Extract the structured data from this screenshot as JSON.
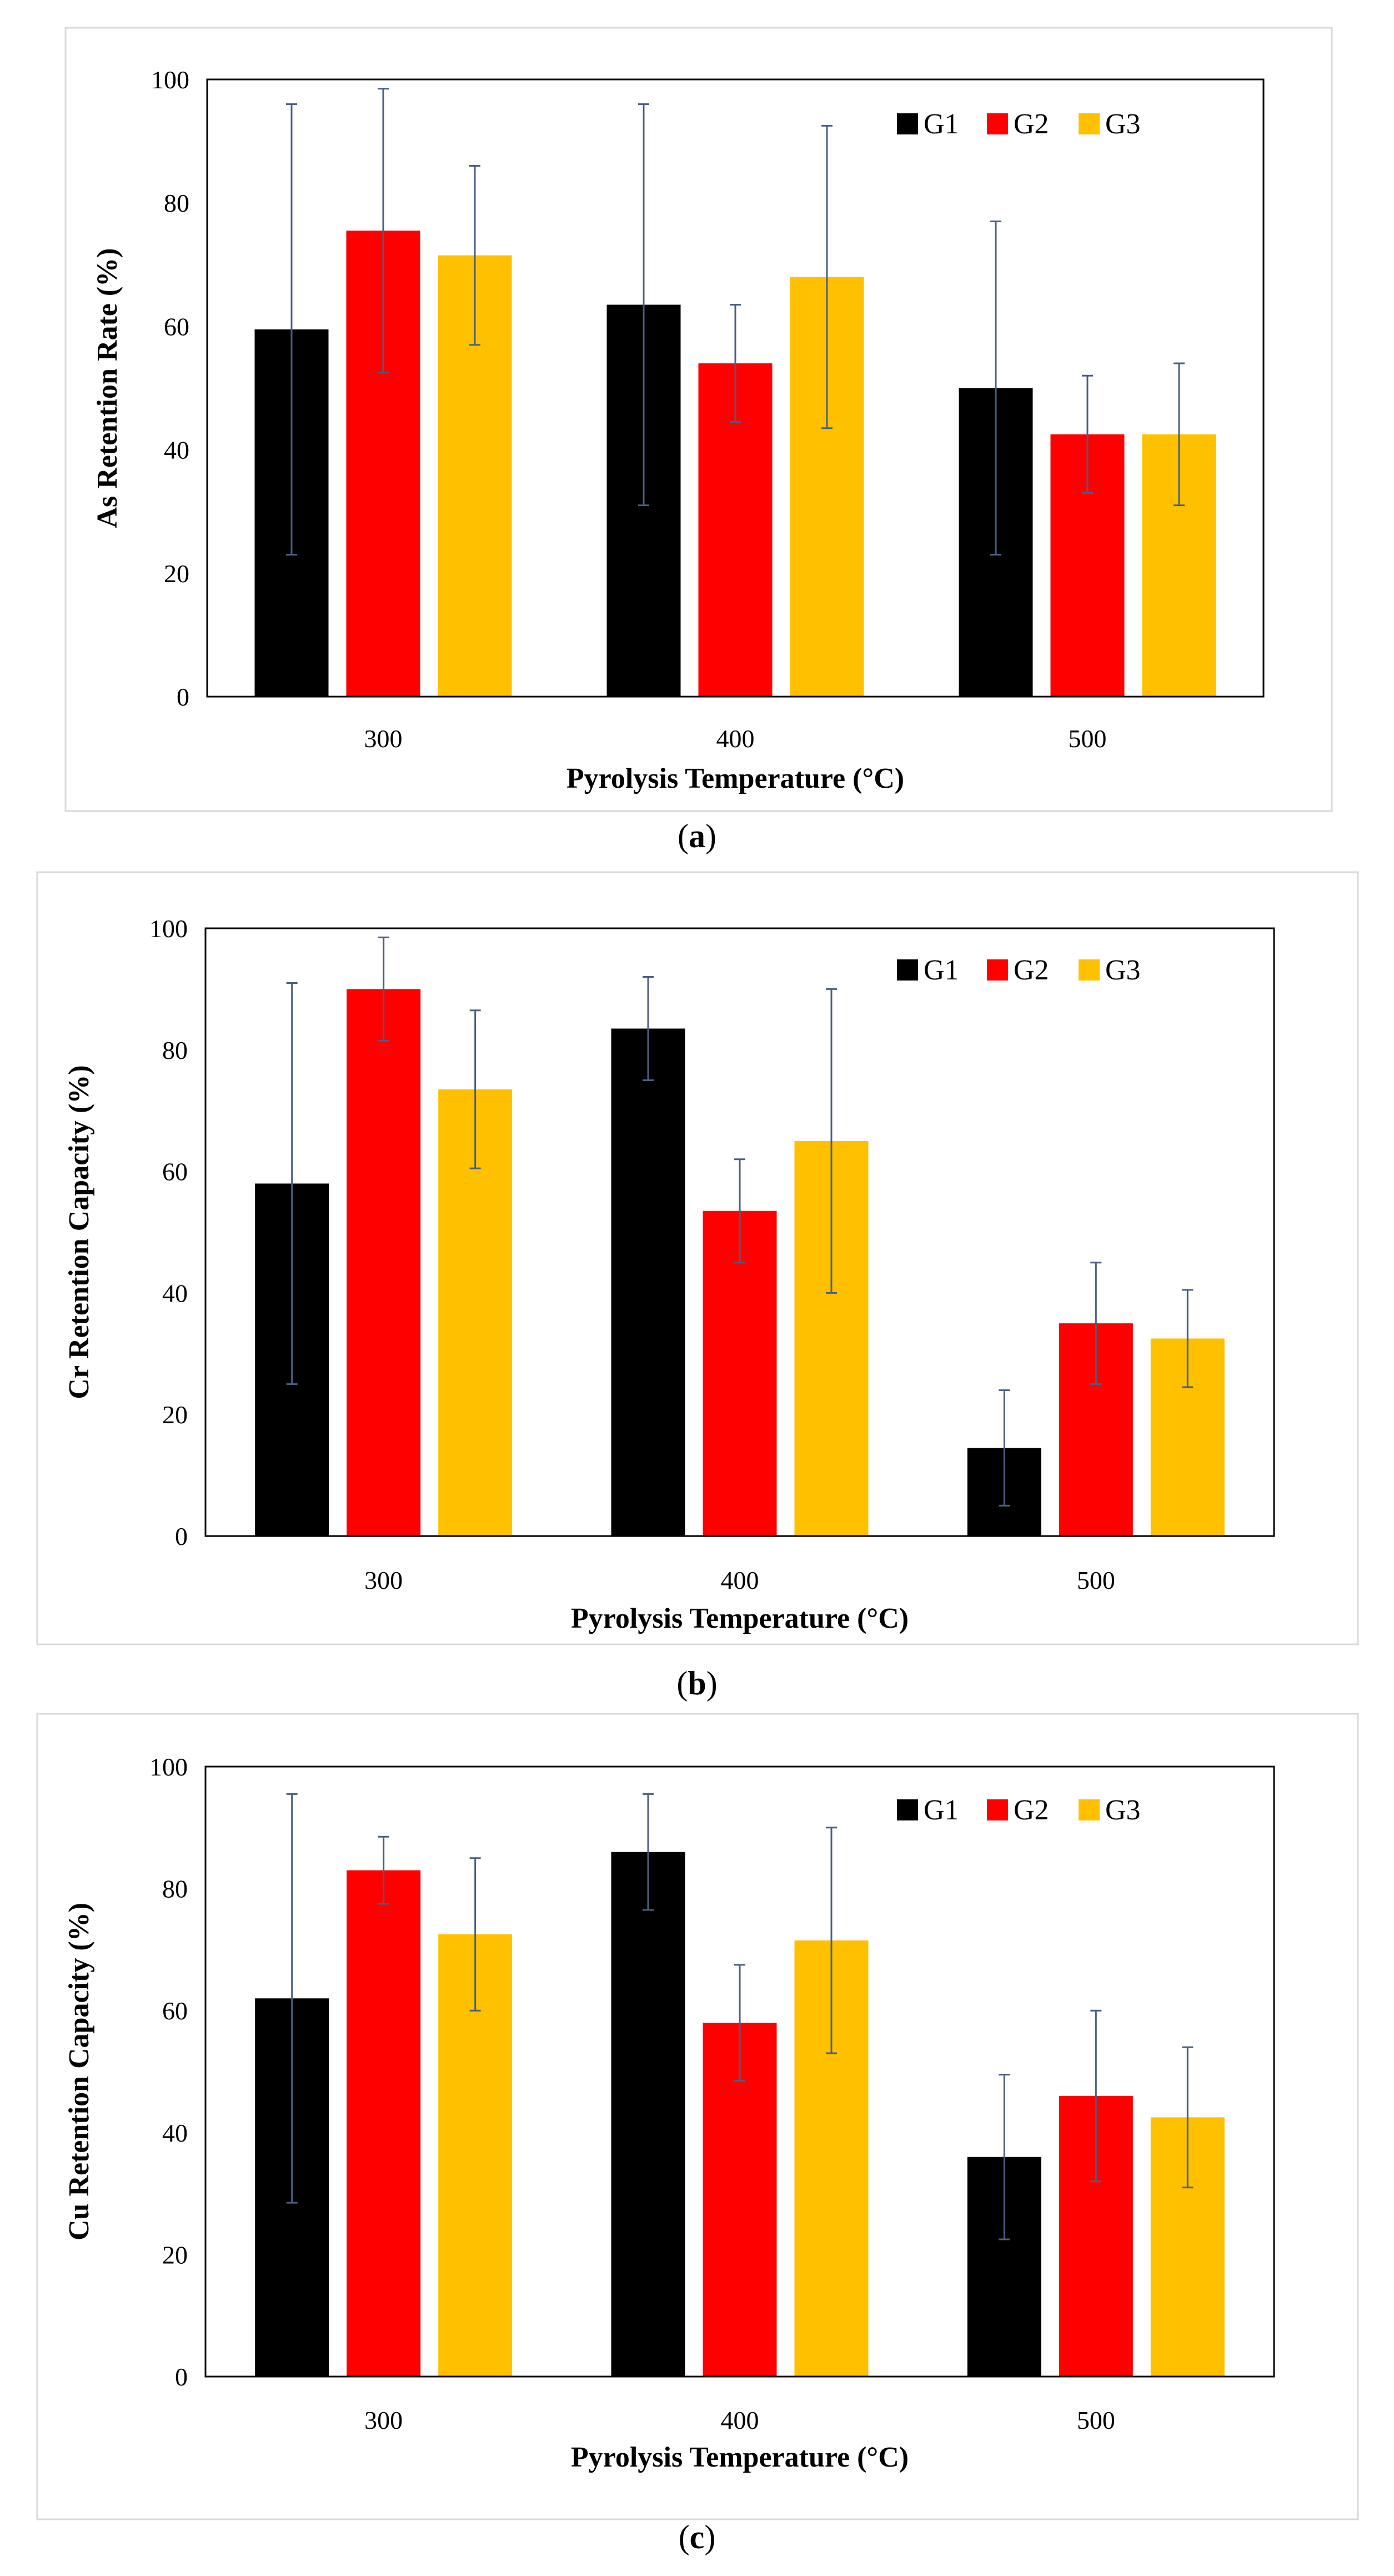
{
  "colors": {
    "G1": "#000000",
    "G2": "#ff0000",
    "G3": "#ffc000",
    "error_bar": "#4a5f82"
  },
  "chart_data": [
    {
      "type": "bar",
      "caption_letter": "a",
      "categories": [
        "300",
        "400",
        "500"
      ],
      "series": [
        {
          "name": "G1",
          "values": [
            59.5,
            63.5,
            50.0
          ],
          "errors": [
            36.5,
            32.5,
            27.0
          ]
        },
        {
          "name": "G2",
          "values": [
            75.5,
            54.0,
            42.5
          ],
          "errors": [
            23.0,
            9.5,
            9.5
          ]
        },
        {
          "name": "G3",
          "values": [
            71.5,
            68.0,
            42.5
          ],
          "errors": [
            14.5,
            24.5,
            11.5
          ]
        }
      ],
      "xlabel": "Pyrolysis Temperature (°C)",
      "ylabel": "As Retention Rate (%)",
      "ylim": [
        0,
        100
      ],
      "yticks": [
        "0",
        "20",
        "40",
        "60",
        "80",
        "100"
      ],
      "grid": false,
      "legend": "top-right"
    },
    {
      "type": "bar",
      "caption_letter": "b",
      "categories": [
        "300",
        "400",
        "500"
      ],
      "series": [
        {
          "name": "G1",
          "values": [
            58.0,
            83.5,
            14.5
          ],
          "errors": [
            33.0,
            8.5,
            9.5
          ]
        },
        {
          "name": "G2",
          "values": [
            90.0,
            53.5,
            35.0
          ],
          "errors": [
            8.5,
            8.5,
            10.0
          ]
        },
        {
          "name": "G3",
          "values": [
            73.5,
            65.0,
            32.5
          ],
          "errors": [
            13.0,
            25.0,
            8.0
          ]
        }
      ],
      "xlabel": "Pyrolysis Temperature (°C)",
      "ylabel": "Cr Retention Capacity (%)",
      "ylim": [
        0,
        100
      ],
      "yticks": [
        "0",
        "20",
        "40",
        "60",
        "80",
        "100"
      ],
      "grid": false,
      "legend": "top-right"
    },
    {
      "type": "bar",
      "caption_letter": "c",
      "categories": [
        "300",
        "400",
        "500"
      ],
      "series": [
        {
          "name": "G1",
          "values": [
            62.0,
            86.0,
            36.0
          ],
          "errors": [
            33.5,
            9.5,
            13.5
          ]
        },
        {
          "name": "G2",
          "values": [
            83.0,
            58.0,
            46.0
          ],
          "errors": [
            5.5,
            9.5,
            14.0
          ]
        },
        {
          "name": "G3",
          "values": [
            72.5,
            71.5,
            42.5
          ],
          "errors": [
            12.5,
            18.5,
            11.5
          ]
        }
      ],
      "xlabel": "Pyrolysis Temperature (°C)",
      "ylabel": "Cu Retention Capacity (%)",
      "ylim": [
        0,
        100
      ],
      "yticks": [
        "0",
        "20",
        "40",
        "60",
        "80",
        "100"
      ],
      "grid": false,
      "legend": "top-right"
    }
  ]
}
